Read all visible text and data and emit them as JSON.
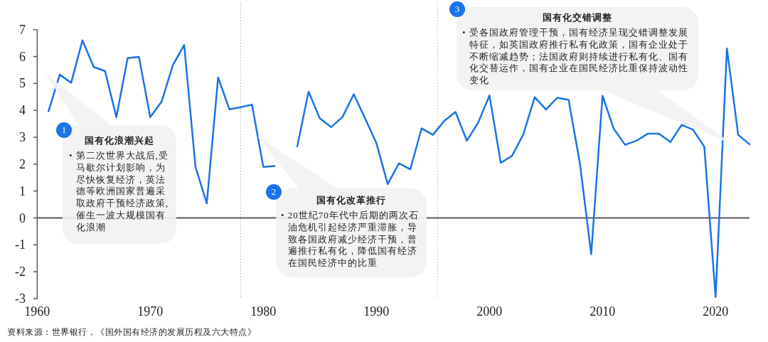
{
  "chart_data": {
    "type": "line",
    "color": "#1a73e8",
    "x": [
      1961,
      1962,
      1963,
      1964,
      1965,
      1966,
      1967,
      1968,
      1969,
      1970,
      1971,
      1972,
      1973,
      1974,
      1975,
      1976,
      1977,
      1978,
      1979,
      1980,
      1981,
      1982,
      1983,
      1984,
      1985,
      1986,
      1987,
      1988,
      1989,
      1990,
      1991,
      1992,
      1993,
      1994,
      1995,
      1996,
      1997,
      1998,
      1999,
      2000,
      2001,
      2002,
      2003,
      2004,
      2005,
      2006,
      2007,
      2008,
      2009,
      2010,
      2011,
      2012,
      2013,
      2014,
      2015,
      2016,
      2017,
      2018,
      2019,
      2020,
      2021,
      2022,
      2023
    ],
    "values": [
      3.97,
      5.33,
      5.02,
      6.6,
      5.61,
      5.46,
      3.75,
      5.94,
      5.99,
      3.75,
      4.32,
      5.68,
      6.43,
      1.9,
      0.54,
      5.22,
      4.04,
      4.12,
      4.21,
      1.9,
      1.93,
      null,
      2.66,
      4.69,
      3.7,
      3.38,
      3.75,
      4.6,
      3.7,
      2.78,
      1.26,
      2.03,
      1.81,
      3.33,
      3.09,
      3.61,
      3.94,
      2.87,
      3.54,
      4.55,
      2.05,
      2.31,
      3.11,
      4.49,
      4.03,
      4.47,
      4.39,
      2.03,
      -1.35,
      4.54,
      3.31,
      2.72,
      2.87,
      3.13,
      3.13,
      2.82,
      3.46,
      3.28,
      2.65,
      -2.94,
      6.3,
      3.09,
      2.74
    ],
    "xlim": [
      1960,
      2023
    ],
    "xticks": [
      1960,
      1970,
      1980,
      1990,
      2000,
      2010,
      2020
    ],
    "ylim": [
      -3,
      7
    ],
    "yticks": [
      -3,
      -2,
      -1,
      0,
      1,
      2,
      3,
      4,
      5,
      6,
      7
    ],
    "ref_lines": [
      {
        "axis": "x",
        "value": 1978,
        "color": "#c4c4c4",
        "line_style": "dotted"
      },
      {
        "axis": "x",
        "value": 1995.4,
        "color": "#c4c4c4",
        "line_style": "dotted"
      }
    ],
    "annotations": [
      "1",
      "国有化浪潮兴起",
      "• 第二次世界大战后,受马歇尔计划影响，为尽快恢复经济，英法德等欧洲国家普遍采取政府干预经济政策,催生一波大规模国有化浪潮",
      "2",
      "国有化改革推行",
      "• 20世纪70年代中后期的两次石油危机引起经济严重滞胀，导致各国政府减少经济干预，普遍推行私有化，降低国有经济在国民经济中的比重",
      "3",
      "国有化交错调整",
      "• 受各国政府管理干预，国有经济呈现交错调整发展特征，如英国政府推行私有化政策，国有企业处于不断缩减趋势；法国政府则持续进行私有化、国有化交替运作，国有企业在国民经济比重保持波动性变化",
      "资料来源：世界银行，《国外国有经济的发展历程及六大特点》"
    ]
  }
}
